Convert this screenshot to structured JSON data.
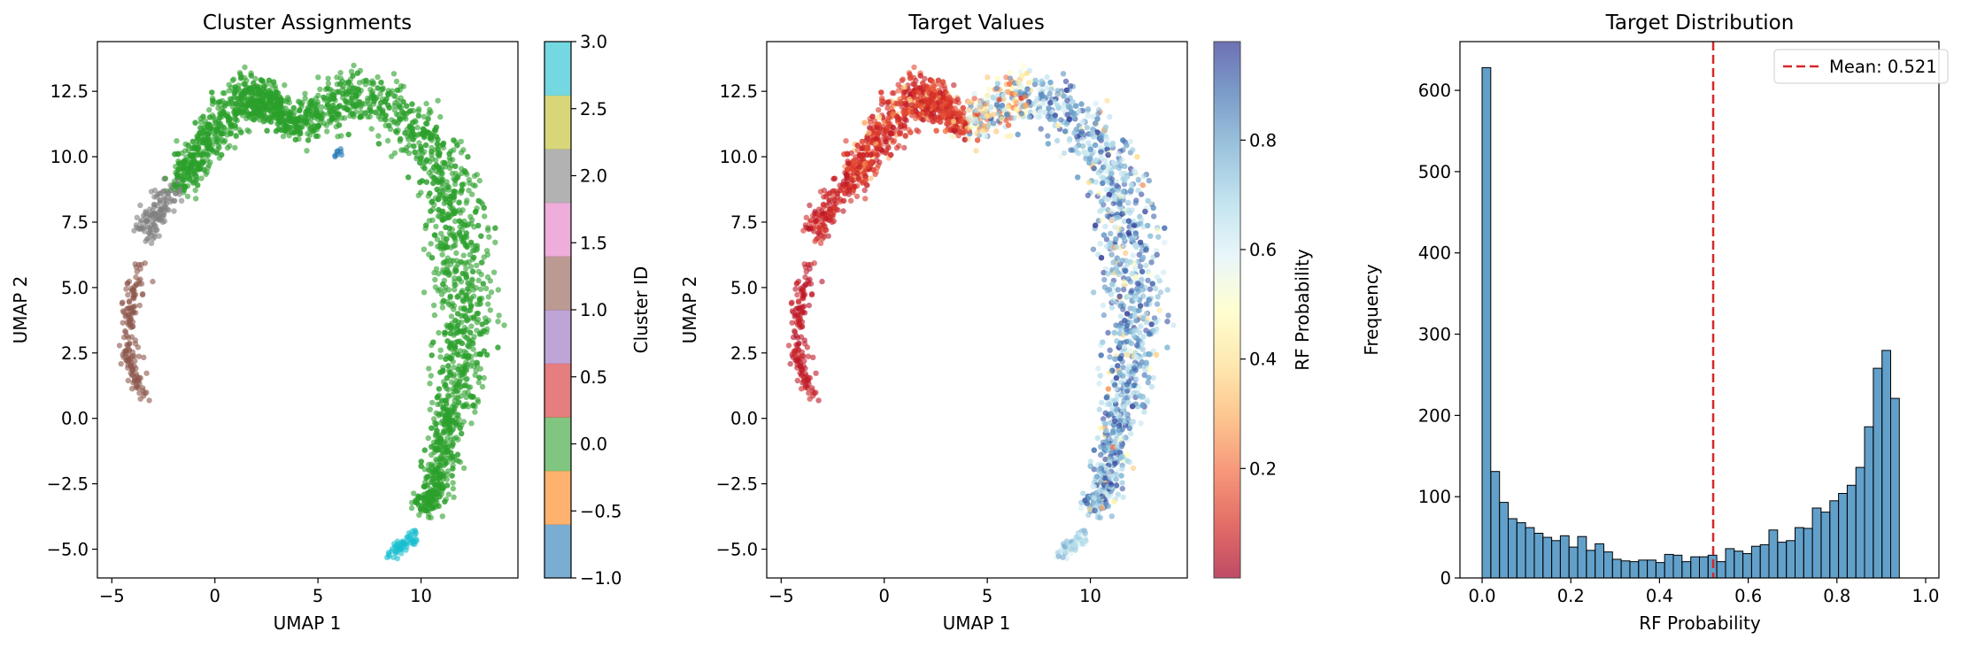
{
  "chart_data": [
    {
      "type": "scatter",
      "title": "Cluster Assignments",
      "xlabel": "UMAP 1",
      "ylabel": "UMAP 2",
      "xlim": [
        -5.7,
        14.7
      ],
      "ylim": [
        -6.1,
        14.4
      ],
      "xticks": [
        -5,
        0,
        5,
        10
      ],
      "yticks": [
        -5.0,
        -2.5,
        0.0,
        2.5,
        5.0,
        7.5,
        10.0,
        12.5
      ],
      "colorbar": {
        "label": "Cluster ID",
        "range": [
          -1.0,
          3.0
        ],
        "ticks": [
          -1.0,
          -0.5,
          0.0,
          0.5,
          1.0,
          1.5,
          2.0,
          2.5,
          3.0
        ],
        "colors": [
          "#1f77b4",
          "#ff7f0e",
          "#2ca02c",
          "#d62728",
          "#9467bd",
          "#8c564b",
          "#e377c2",
          "#7f7f7f",
          "#bcbd22",
          "#17becf"
        ]
      },
      "clusters": [
        {
          "id": "green",
          "color": "#2ca02c",
          "approx_points": 2600
        },
        {
          "id": "brown",
          "color": "#8c564b",
          "approx_points": 150
        },
        {
          "id": "gray",
          "color": "#7f7f7f",
          "approx_points": 120
        },
        {
          "id": "cyan",
          "color": "#17becf",
          "approx_points": 60
        },
        {
          "id": "blue",
          "color": "#1f77b4",
          "approx_points": 8
        }
      ]
    },
    {
      "type": "scatter",
      "title": "Target Values",
      "xlabel": "UMAP 1",
      "ylabel": "UMAP 2",
      "xlim": [
        -5.7,
        14.7
      ],
      "ylim": [
        -6.1,
        14.4
      ],
      "xticks": [
        -5,
        0,
        5,
        10
      ],
      "yticks": [
        -5.0,
        -2.5,
        0.0,
        2.5,
        5.0,
        7.5,
        10.0,
        12.5
      ],
      "colorbar": {
        "label": "RF Probability",
        "range": [
          0.0,
          0.98
        ],
        "ticks": [
          0.2,
          0.4,
          0.6,
          0.8
        ],
        "colormap": "RdYlBu"
      }
    },
    {
      "type": "bar",
      "title": "Target Distribution",
      "xlabel": "RF Probability",
      "ylabel": "Frequency",
      "xlim": [
        -0.05,
        1.03
      ],
      "ylim": [
        0,
        660
      ],
      "xticks": [
        0.0,
        0.2,
        0.4,
        0.6,
        0.8,
        1.0
      ],
      "yticks": [
        0,
        100,
        200,
        300,
        400,
        500,
        600
      ],
      "bin_start": 0.0,
      "bin_width": 0.0196,
      "values": [
        628,
        131,
        93,
        73,
        68,
        62,
        55,
        50,
        46,
        52,
        38,
        51,
        34,
        42,
        32,
        23,
        21,
        20,
        22,
        22,
        19,
        29,
        28,
        20,
        26,
        26,
        28,
        20,
        36,
        33,
        30,
        39,
        41,
        59,
        44,
        46,
        62,
        61,
        86,
        81,
        95,
        104,
        114,
        136,
        186,
        258,
        280,
        221
      ],
      "color": "#1f77b4",
      "mean_line": {
        "value": 0.521,
        "label": "Mean: 0.521",
        "color": "#d62728"
      },
      "legend": "top-right"
    }
  ]
}
